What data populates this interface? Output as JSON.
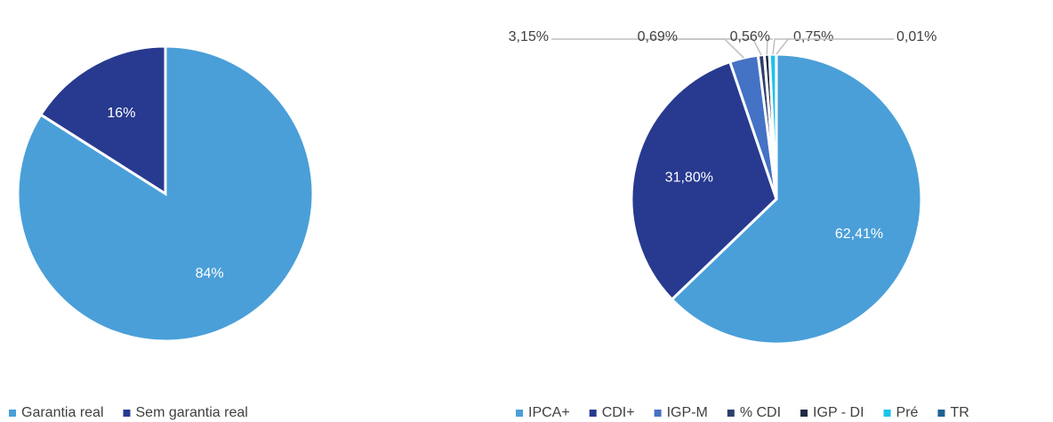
{
  "chart_data": [
    {
      "type": "pie",
      "categories": [
        "Garantia real",
        "Sem garantia real"
      ],
      "values": [
        84,
        16
      ],
      "value_labels": [
        "84%",
        "16%"
      ],
      "colors": [
        "#4a9fd8",
        "#283a8f"
      ],
      "legend": "bottom-left"
    },
    {
      "type": "pie",
      "categories": [
        "IPCA+",
        "CDI+",
        "IGP-M",
        "% CDI",
        "IGP - DI",
        "Pré",
        "TR"
      ],
      "values": [
        62.41,
        31.8,
        3.15,
        0.69,
        0.56,
        0.75,
        0.01
      ],
      "value_labels": [
        "62,41%",
        "31,80%",
        "3,15%",
        "0,69%",
        "0,56%",
        "0,75%",
        "0,01%"
      ],
      "colors": [
        "#4a9fd8",
        "#283a8f",
        "#4472c4",
        "#2e3f6e",
        "#1f2a44",
        "#1cc3ea",
        "#1f6391"
      ],
      "legend": "bottom-right"
    }
  ]
}
